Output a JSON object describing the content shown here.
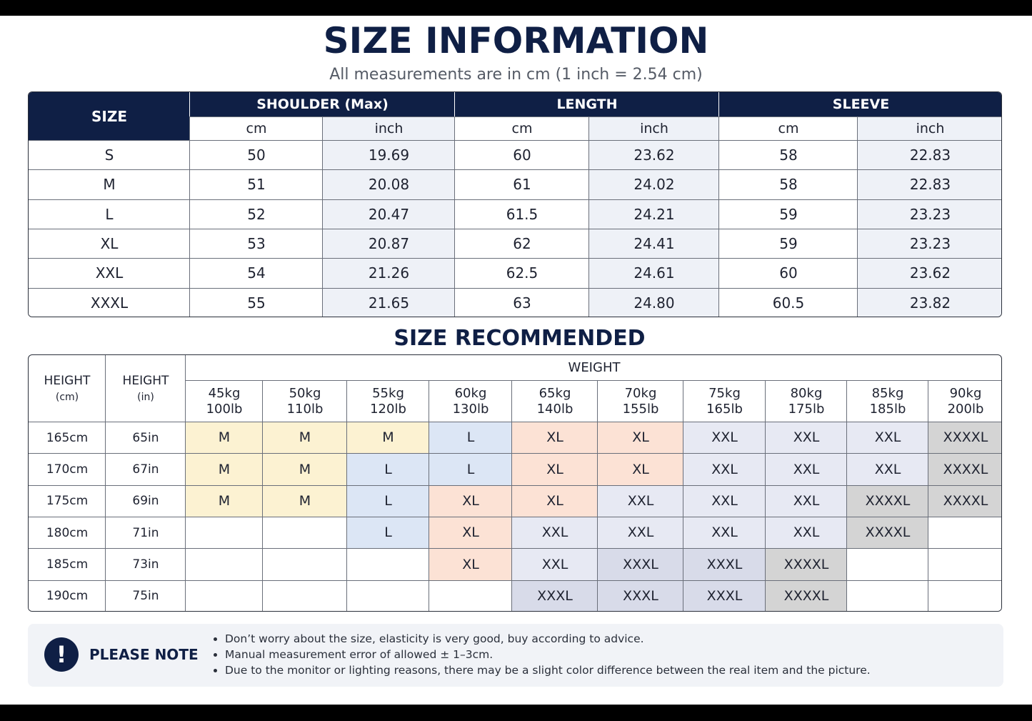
{
  "header": {
    "title": "SIZE INFORMATION",
    "subtitle": "All measurements are in cm (1 inch = 2.54 cm)"
  },
  "size_table": {
    "size_header": "SIZE",
    "groups": [
      "SHOULDER (Max)",
      "LENGTH",
      "SLEEVE"
    ],
    "units": [
      "cm",
      "inch",
      "cm",
      "inch",
      "cm",
      "inch"
    ],
    "rows": [
      [
        "S",
        "50",
        "19.69",
        "60",
        "23.62",
        "58",
        "22.83"
      ],
      [
        "M",
        "51",
        "20.08",
        "61",
        "24.02",
        "58",
        "22.83"
      ],
      [
        "L",
        "52",
        "20.47",
        "61.5",
        "24.21",
        "59",
        "23.23"
      ],
      [
        "XL",
        "53",
        "20.87",
        "62",
        "24.41",
        "59",
        "23.23"
      ],
      [
        "XXL",
        "54",
        "21.26",
        "62.5",
        "24.61",
        "60",
        "23.62"
      ],
      [
        "XXXL",
        "55",
        "21.65",
        "63",
        "24.80",
        "60.5",
        "23.82"
      ]
    ]
  },
  "recommend": {
    "title": "SIZE RECOMMENDED",
    "height_headers": [
      {
        "label": "HEIGHT",
        "unit": "(cm)"
      },
      {
        "label": "HEIGHT",
        "unit": "(in)"
      }
    ],
    "weight_header": "WEIGHT",
    "weights": [
      [
        "45kg",
        "100lb"
      ],
      [
        "50kg",
        "110lb"
      ],
      [
        "55kg",
        "120lb"
      ],
      [
        "60kg",
        "130lb"
      ],
      [
        "65kg",
        "140lb"
      ],
      [
        "70kg",
        "155lb"
      ],
      [
        "75kg",
        "165lb"
      ],
      [
        "80kg",
        "175lb"
      ],
      [
        "85kg",
        "185lb"
      ],
      [
        "90kg",
        "200lb"
      ]
    ],
    "rows": [
      [
        "165cm",
        "65in",
        "M",
        "M",
        "M",
        "L",
        "XL",
        "XL",
        "XXL",
        "XXL",
        "XXL",
        "XXXXL"
      ],
      [
        "170cm",
        "67in",
        "M",
        "M",
        "L",
        "L",
        "XL",
        "XL",
        "XXL",
        "XXL",
        "XXL",
        "XXXXL"
      ],
      [
        "175cm",
        "69in",
        "M",
        "M",
        "L",
        "XL",
        "XL",
        "XXL",
        "XXL",
        "XXL",
        "XXXXL",
        "XXXXL"
      ],
      [
        "180cm",
        "71in",
        null,
        null,
        "L",
        "XL",
        "XXL",
        "XXL",
        "XXL",
        "XXL",
        "XXXXL",
        null
      ],
      [
        "185cm",
        "73in",
        null,
        null,
        null,
        "XL",
        "XXL",
        "XXXL",
        "XXXL",
        "XXXXL",
        null,
        null
      ],
      [
        "190cm",
        "75in",
        null,
        null,
        null,
        null,
        "XXXL",
        "XXXL",
        "XXXL",
        "XXXXL",
        null,
        null
      ]
    ],
    "size_colors": {
      "M": "#fcf2d2",
      "L": "#dce6f5",
      "XL": "#fce2d5",
      "XXL": "#e7e9f3",
      "XXXL": "#d8dbe9",
      "XXXXL": "#d4d4d4"
    }
  },
  "note": {
    "icon": "!",
    "title": "PLEASE NOTE",
    "items": [
      "Don’t worry about the size, elasticity is very good, buy according to advice.",
      "Manual measurement error of allowed ± 1–3cm.",
      "Due to the monitor or lighting reasons, there may be a slight color difference between the real item and the picture."
    ]
  }
}
